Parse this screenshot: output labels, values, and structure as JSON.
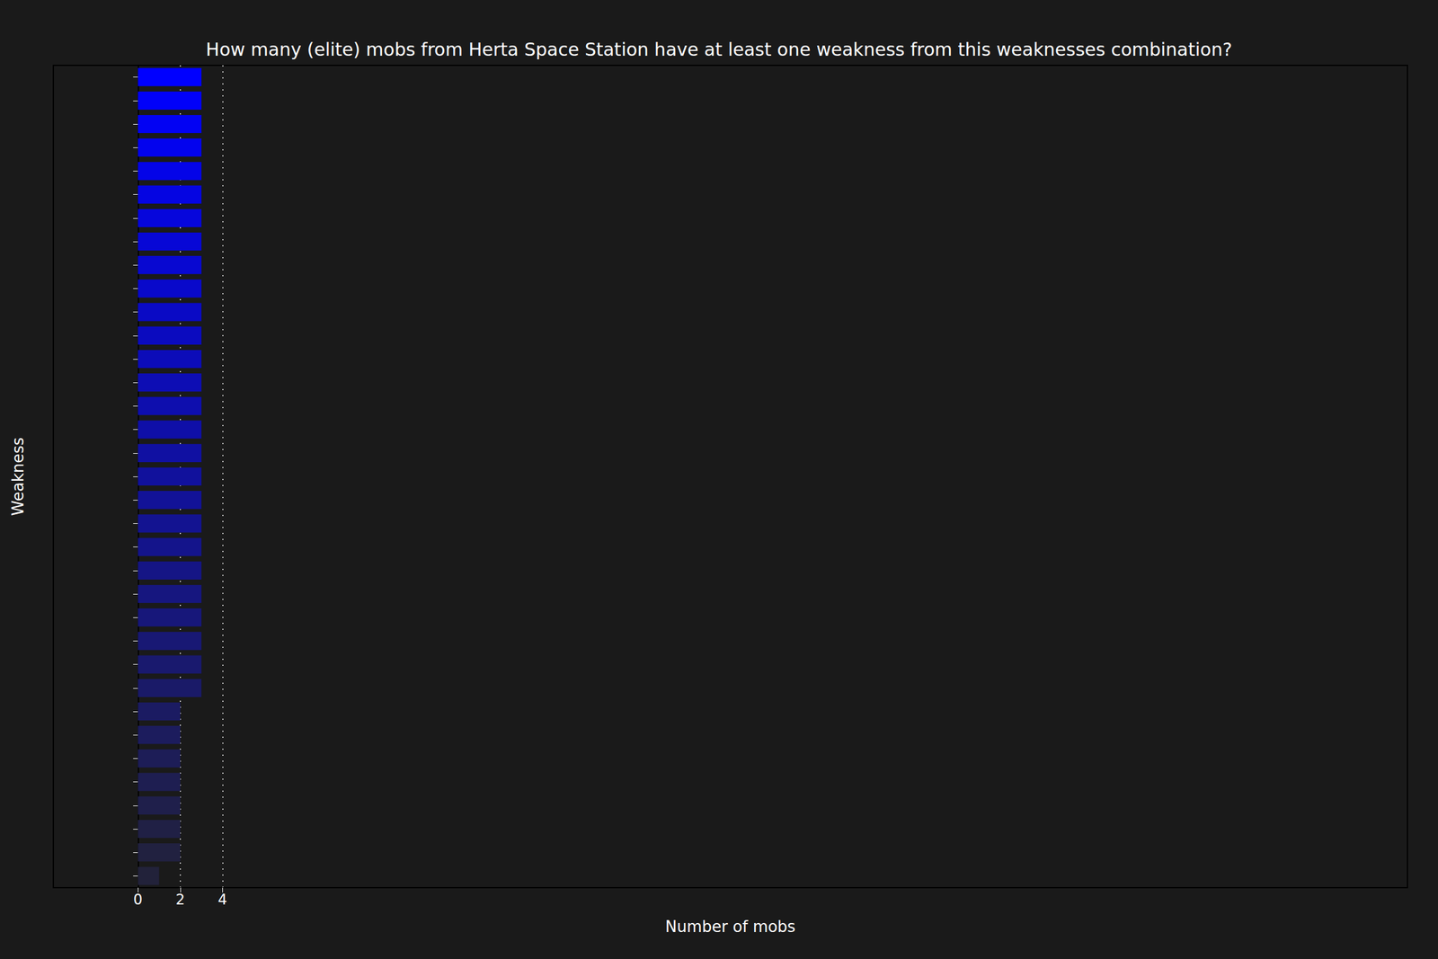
{
  "chart_data": {
    "type": "bar",
    "orientation": "horizontal",
    "title": "How many (elite) mobs from Herta Space Station have at least one weakness from this weaknesses combination?",
    "xlabel": "Number of mobs",
    "ylabel": "Weakness",
    "categories": [
      null,
      null,
      null,
      null,
      null,
      null,
      null,
      null,
      null,
      null,
      null,
      null,
      null,
      null,
      null,
      null,
      null,
      null,
      null,
      null,
      null,
      null,
      null,
      null,
      null,
      null,
      null,
      null,
      null,
      null,
      null,
      null,
      null,
      null,
      null
    ],
    "values": [
      3,
      3,
      3,
      3,
      3,
      3,
      3,
      3,
      3,
      3,
      3,
      3,
      3,
      3,
      3,
      3,
      3,
      3,
      3,
      3,
      3,
      3,
      3,
      3,
      3,
      3,
      3,
      2,
      2,
      2,
      2,
      2,
      2,
      2,
      1
    ],
    "colors": [
      "#0000ff",
      "#0101f9",
      "#0202f3",
      "#0303ee",
      "#0404e8",
      "#0505e2",
      "#0606dc",
      "#0707d6",
      "#0808d1",
      "#0909cb",
      "#0a0ac5",
      "#0b0bbf",
      "#0c0cb9",
      "#0d0db4",
      "#0e0eae",
      "#0f0fa8",
      "#1010a2",
      "#11119c",
      "#121297",
      "#131391",
      "#14148b",
      "#151585",
      "#16167f",
      "#17177a",
      "#181874",
      "#19196e",
      "#1a1a68",
      "#1b1b62",
      "#1c1c5d",
      "#1d1d57",
      "#1e1e51",
      "#1f1f4b",
      "#202045",
      "#212140",
      "#22223a"
    ],
    "xlim": [
      -4,
      60
    ],
    "xticks": [
      0,
      2,
      4
    ],
    "grid": true
  }
}
